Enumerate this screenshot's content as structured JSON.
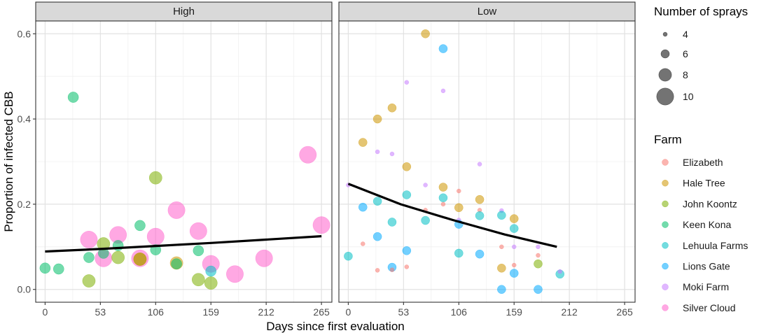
{
  "chart_data": {
    "type": "scatter",
    "xlabel": "Days since first evaluation",
    "ylabel": "Proportion of infected CBB",
    "x_ticks": [
      0,
      53,
      106,
      159,
      212,
      265
    ],
    "x_tick_labels": [
      "0",
      "53",
      "106",
      "159",
      "212",
      "265"
    ],
    "y_ticks": [
      0.0,
      0.2,
      0.4,
      0.6
    ],
    "y_tick_labels": [
      "0.0",
      "0.2",
      "0.4",
      "0.6"
    ],
    "xlim": [
      -9,
      275
    ],
    "ylim": [
      -0.03,
      0.63
    ],
    "grid": true,
    "size_legend": {
      "title": "Number of sprays",
      "entries": [
        {
          "label": "4",
          "sprays": 4
        },
        {
          "label": "6",
          "sprays": 6
        },
        {
          "label": "8",
          "sprays": 8
        },
        {
          "label": "10",
          "sprays": 10
        }
      ]
    },
    "color_legend": {
      "title": "Farm",
      "entries": [
        {
          "label": "Elizabeth",
          "color": "#F8766D"
        },
        {
          "label": "Hale Tree",
          "color": "#CD9600"
        },
        {
          "label": "John Koontz",
          "color": "#7CAE00"
        },
        {
          "label": "Keen Kona",
          "color": "#00BE67"
        },
        {
          "label": "Lehuula Farms",
          "color": "#00BFC4"
        },
        {
          "label": "Lions Gate",
          "color": "#00A9FF"
        },
        {
          "label": "Moki Farm",
          "color": "#C77CFF"
        },
        {
          "label": "Silver Cloud",
          "color": "#FF61CC"
        }
      ]
    },
    "panels": [
      {
        "label": "High",
        "trend": [
          [
            0,
            0.089
          ],
          [
            53,
            0.095
          ],
          [
            106,
            0.102
          ],
          [
            159,
            0.109
          ],
          [
            212,
            0.117
          ],
          [
            265,
            0.125
          ]
        ],
        "points": [
          {
            "farm": "Keen Kona",
            "x": 0,
            "y": 0.05,
            "sprays": 7
          },
          {
            "farm": "Keen Kona",
            "x": 13,
            "y": 0.048,
            "sprays": 7
          },
          {
            "farm": "Keen Kona",
            "x": 27,
            "y": 0.451,
            "sprays": 7
          },
          {
            "farm": "Silver Cloud",
            "x": 42,
            "y": 0.117,
            "sprays": 10
          },
          {
            "farm": "Keen Kona",
            "x": 42,
            "y": 0.075,
            "sprays": 7
          },
          {
            "farm": "John Koontz",
            "x": 42,
            "y": 0.02,
            "sprays": 8
          },
          {
            "farm": "Silver Cloud",
            "x": 56,
            "y": 0.073,
            "sprays": 10
          },
          {
            "farm": "John Koontz",
            "x": 56,
            "y": 0.107,
            "sprays": 8
          },
          {
            "farm": "Keen Kona",
            "x": 56,
            "y": 0.085,
            "sprays": 7
          },
          {
            "farm": "Silver Cloud",
            "x": 70,
            "y": 0.128,
            "sprays": 10
          },
          {
            "farm": "Keen Kona",
            "x": 70,
            "y": 0.103,
            "sprays": 7
          },
          {
            "farm": "John Koontz",
            "x": 70,
            "y": 0.075,
            "sprays": 8
          },
          {
            "farm": "Silver Cloud",
            "x": 91,
            "y": 0.073,
            "sprays": 10
          },
          {
            "farm": "Keen Kona",
            "x": 91,
            "y": 0.15,
            "sprays": 7
          },
          {
            "farm": "John Koontz",
            "x": 91,
            "y": 0.071,
            "sprays": 8
          },
          {
            "farm": "Hale Tree",
            "x": 91,
            "y": 0.071,
            "sprays": 8
          },
          {
            "farm": "John Koontz",
            "x": 106,
            "y": 0.262,
            "sprays": 8
          },
          {
            "farm": "Silver Cloud",
            "x": 106,
            "y": 0.124,
            "sprays": 10
          },
          {
            "farm": "Keen Kona",
            "x": 106,
            "y": 0.093,
            "sprays": 7
          },
          {
            "farm": "Silver Cloud",
            "x": 126,
            "y": 0.186,
            "sprays": 10
          },
          {
            "farm": "Hale Tree",
            "x": 126,
            "y": 0.062,
            "sprays": 8
          },
          {
            "farm": "Keen Kona",
            "x": 126,
            "y": 0.06,
            "sprays": 7
          },
          {
            "farm": "Silver Cloud",
            "x": 147,
            "y": 0.137,
            "sprays": 10
          },
          {
            "farm": "Keen Kona",
            "x": 147,
            "y": 0.091,
            "sprays": 7
          },
          {
            "farm": "John Koontz",
            "x": 147,
            "y": 0.023,
            "sprays": 8
          },
          {
            "farm": "Silver Cloud",
            "x": 159,
            "y": 0.06,
            "sprays": 10
          },
          {
            "farm": "Lehuula Farms",
            "x": 159,
            "y": 0.043,
            "sprays": 7
          },
          {
            "farm": "John Koontz",
            "x": 159,
            "y": 0.015,
            "sprays": 8
          },
          {
            "farm": "Silver Cloud",
            "x": 182,
            "y": 0.036,
            "sprays": 10
          },
          {
            "farm": "Silver Cloud",
            "x": 210,
            "y": 0.073,
            "sprays": 10
          },
          {
            "farm": "Silver Cloud",
            "x": 252,
            "y": 0.316,
            "sprays": 10
          },
          {
            "farm": "Silver Cloud",
            "x": 265,
            "y": 0.151,
            "sprays": 10
          }
        ]
      },
      {
        "label": "Low",
        "trend": [
          [
            0,
            0.248
          ],
          [
            50,
            0.2
          ],
          [
            100,
            0.163
          ],
          [
            150,
            0.129
          ],
          [
            200,
            0.1
          ]
        ],
        "points": [
          {
            "farm": "Lehuula Farms",
            "x": 0,
            "y": 0.078,
            "sprays": 6
          },
          {
            "farm": "Moki Farm",
            "x": 0,
            "y": 0.245,
            "sprays": 4
          },
          {
            "farm": "Hale Tree",
            "x": 14,
            "y": 0.345,
            "sprays": 6
          },
          {
            "farm": "Lions Gate",
            "x": 14,
            "y": 0.193,
            "sprays": 6
          },
          {
            "farm": "Elizabeth",
            "x": 14,
            "y": 0.107,
            "sprays": 4
          },
          {
            "farm": "Hale Tree",
            "x": 28,
            "y": 0.4,
            "sprays": 6
          },
          {
            "farm": "Moki Farm",
            "x": 28,
            "y": 0.323,
            "sprays": 4
          },
          {
            "farm": "Lehuula Farms",
            "x": 28,
            "y": 0.207,
            "sprays": 6
          },
          {
            "farm": "Lions Gate",
            "x": 28,
            "y": 0.124,
            "sprays": 6
          },
          {
            "farm": "Elizabeth",
            "x": 28,
            "y": 0.045,
            "sprays": 4
          },
          {
            "farm": "Hale Tree",
            "x": 42,
            "y": 0.426,
            "sprays": 6
          },
          {
            "farm": "Moki Farm",
            "x": 42,
            "y": 0.318,
            "sprays": 4
          },
          {
            "farm": "Lehuula Farms",
            "x": 42,
            "y": 0.158,
            "sprays": 6
          },
          {
            "farm": "Lions Gate",
            "x": 42,
            "y": 0.052,
            "sprays": 6
          },
          {
            "farm": "Elizabeth",
            "x": 42,
            "y": 0.046,
            "sprays": 4
          },
          {
            "farm": "Moki Farm",
            "x": 56,
            "y": 0.486,
            "sprays": 4
          },
          {
            "farm": "Hale Tree",
            "x": 56,
            "y": 0.288,
            "sprays": 6
          },
          {
            "farm": "Lehuula Farms",
            "x": 56,
            "y": 0.222,
            "sprays": 6
          },
          {
            "farm": "Lions Gate",
            "x": 56,
            "y": 0.091,
            "sprays": 6
          },
          {
            "farm": "Elizabeth",
            "x": 56,
            "y": 0.053,
            "sprays": 4
          },
          {
            "farm": "Hale Tree",
            "x": 74,
            "y": 0.6,
            "sprays": 6
          },
          {
            "farm": "Moki Farm",
            "x": 74,
            "y": 0.245,
            "sprays": 4
          },
          {
            "farm": "Elizabeth",
            "x": 74,
            "y": 0.186,
            "sprays": 4
          },
          {
            "farm": "Lehuula Farms",
            "x": 74,
            "y": 0.162,
            "sprays": 6
          },
          {
            "farm": "Lions Gate",
            "x": 91,
            "y": 0.565,
            "sprays": 6
          },
          {
            "farm": "Moki Farm",
            "x": 91,
            "y": 0.466,
            "sprays": 4
          },
          {
            "farm": "Hale Tree",
            "x": 91,
            "y": 0.24,
            "sprays": 6
          },
          {
            "farm": "Lehuula Farms",
            "x": 91,
            "y": 0.215,
            "sprays": 6
          },
          {
            "farm": "Elizabeth",
            "x": 91,
            "y": 0.2,
            "sprays": 4
          },
          {
            "farm": "Elizabeth",
            "x": 106,
            "y": 0.231,
            "sprays": 4
          },
          {
            "farm": "Hale Tree",
            "x": 106,
            "y": 0.192,
            "sprays": 6
          },
          {
            "farm": "Moki Farm",
            "x": 106,
            "y": 0.163,
            "sprays": 4
          },
          {
            "farm": "Lions Gate",
            "x": 106,
            "y": 0.153,
            "sprays": 6
          },
          {
            "farm": "Lehuula Farms",
            "x": 106,
            "y": 0.085,
            "sprays": 6
          },
          {
            "farm": "Moki Farm",
            "x": 126,
            "y": 0.294,
            "sprays": 4
          },
          {
            "farm": "Hale Tree",
            "x": 126,
            "y": 0.211,
            "sprays": 6
          },
          {
            "farm": "Elizabeth",
            "x": 126,
            "y": 0.186,
            "sprays": 4
          },
          {
            "farm": "Lehuula Farms",
            "x": 126,
            "y": 0.173,
            "sprays": 6
          },
          {
            "farm": "Lions Gate",
            "x": 126,
            "y": 0.083,
            "sprays": 6
          },
          {
            "farm": "Moki Farm",
            "x": 147,
            "y": 0.185,
            "sprays": 4
          },
          {
            "farm": "Lehuula Farms",
            "x": 147,
            "y": 0.174,
            "sprays": 6
          },
          {
            "farm": "Elizabeth",
            "x": 147,
            "y": 0.1,
            "sprays": 4
          },
          {
            "farm": "Hale Tree",
            "x": 147,
            "y": 0.05,
            "sprays": 6
          },
          {
            "farm": "Lions Gate",
            "x": 147,
            "y": 0.0,
            "sprays": 6
          },
          {
            "farm": "Hale Tree",
            "x": 159,
            "y": 0.166,
            "sprays": 6
          },
          {
            "farm": "Lehuula Farms",
            "x": 159,
            "y": 0.143,
            "sprays": 6
          },
          {
            "farm": "Moki Farm",
            "x": 159,
            "y": 0.1,
            "sprays": 4
          },
          {
            "farm": "Elizabeth",
            "x": 159,
            "y": 0.057,
            "sprays": 4
          },
          {
            "farm": "Lions Gate",
            "x": 159,
            "y": 0.038,
            "sprays": 6
          },
          {
            "farm": "Moki Farm",
            "x": 182,
            "y": 0.1,
            "sprays": 4
          },
          {
            "farm": "Elizabeth",
            "x": 182,
            "y": 0.08,
            "sprays": 4
          },
          {
            "farm": "John Koontz",
            "x": 182,
            "y": 0.06,
            "sprays": 6
          },
          {
            "farm": "Lions Gate",
            "x": 182,
            "y": 0.0,
            "sprays": 6
          },
          {
            "farm": "Lehuula Farms",
            "x": 203,
            "y": 0.036,
            "sprays": 6
          },
          {
            "farm": "Moki Farm",
            "x": 203,
            "y": 0.042,
            "sprays": 4
          }
        ]
      }
    ]
  }
}
